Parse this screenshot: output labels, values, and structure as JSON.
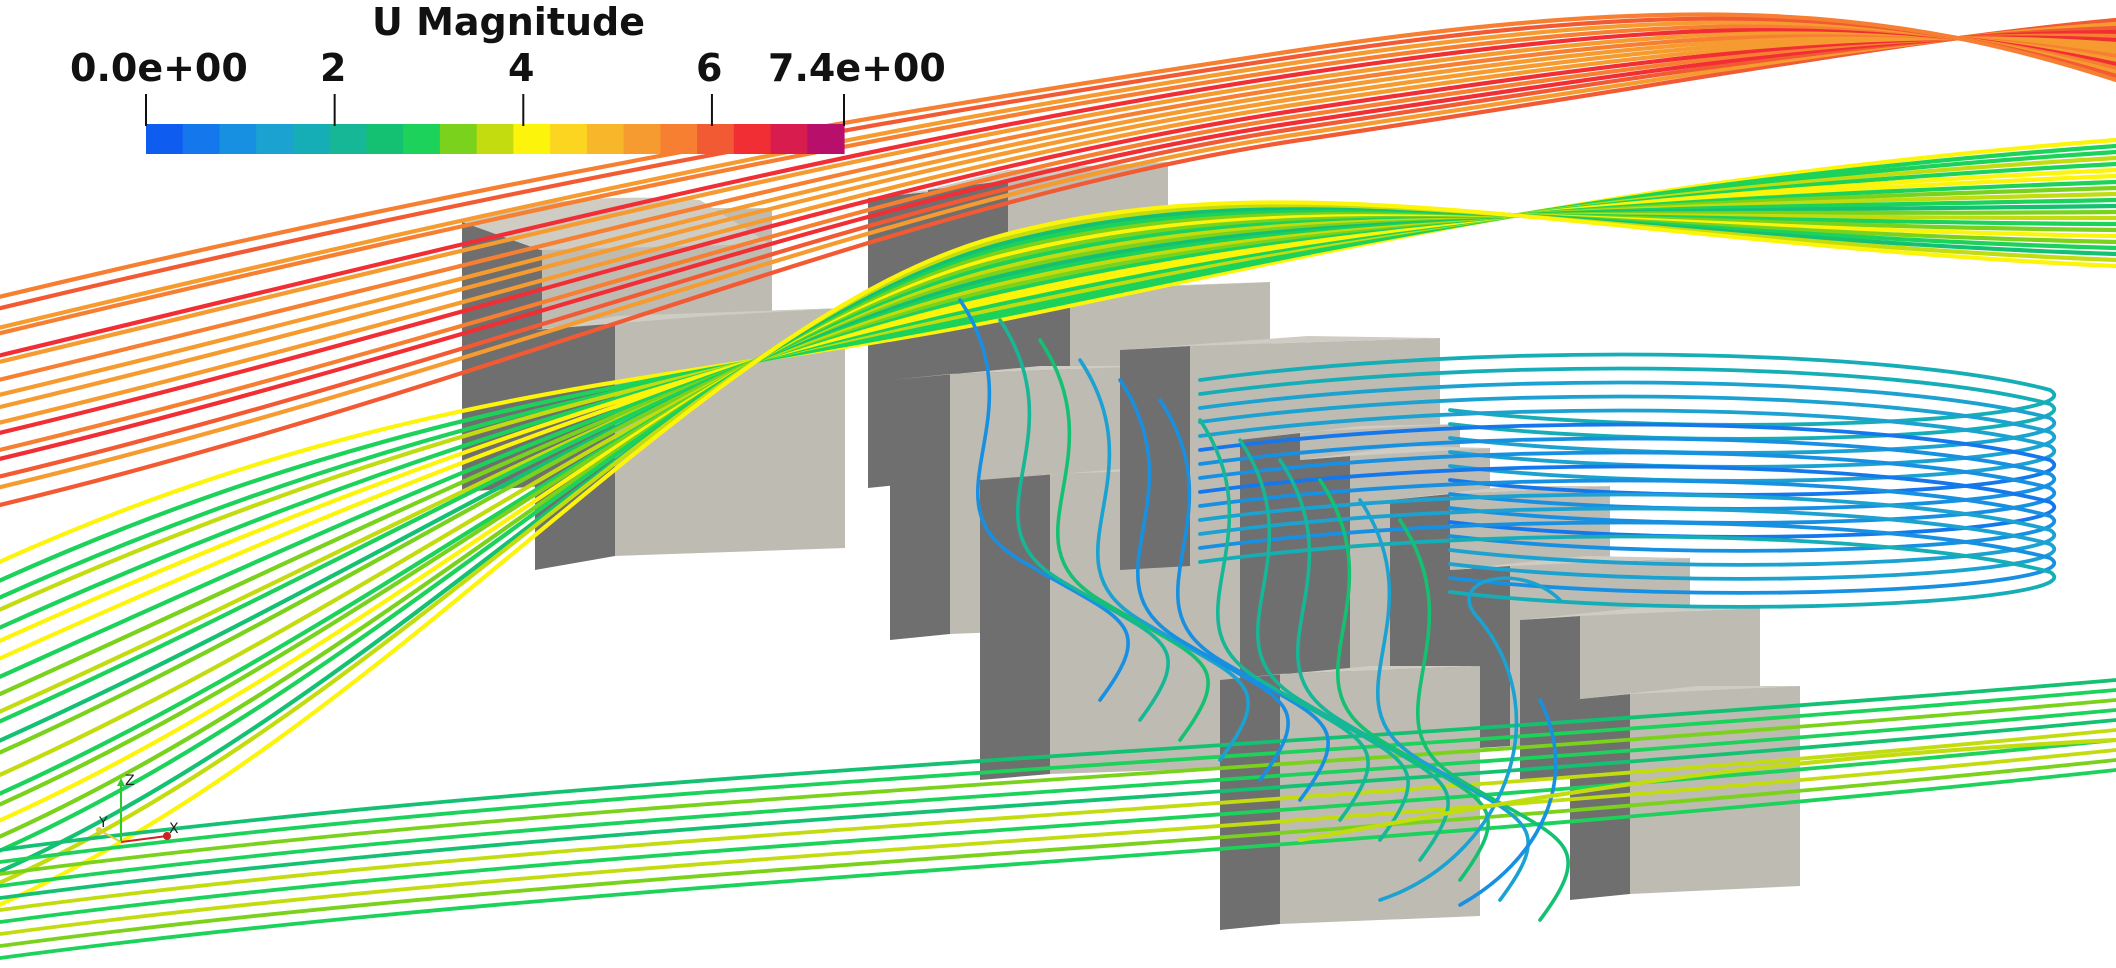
{
  "colorbar": {
    "title": "U Magnitude",
    "range": [
      0.0,
      7.4
    ],
    "ticks": [
      {
        "label": "0.0e+00",
        "value": 0.0
      },
      {
        "label": "2",
        "value": 2
      },
      {
        "label": "4",
        "value": 4
      },
      {
        "label": "6",
        "value": 6
      },
      {
        "label": "7.4e+00",
        "value": 7.4
      }
    ],
    "colors": [
      "#0f5cf0",
      "#1577ec",
      "#1890e2",
      "#1ba2d0",
      "#16aeb6",
      "#15b796",
      "#14c172",
      "#1cd25a",
      "#7ad21c",
      "#c2dc10",
      "#fcf40a",
      "#fbd520",
      "#f8b72a",
      "#f69b30",
      "#f67f32",
      "#f25a33",
      "#f02e34",
      "#d81d4e",
      "#b8106a"
    ]
  },
  "axes_triad": {
    "z_label": "Z",
    "y_label": "Y",
    "x_label": "X"
  }
}
